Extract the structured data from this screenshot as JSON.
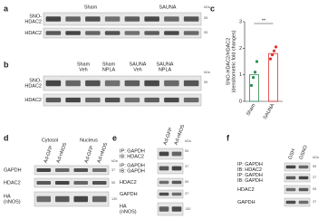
{
  "panels": {
    "a": {
      "label": "a",
      "groups": [
        "Sham",
        "SAUNA"
      ],
      "rows": [
        [
          "SNO-",
          "HDAC2"
        ],
        [
          "HDAC2"
        ]
      ],
      "mw": [
        "kDa",
        "55",
        "55"
      ]
    },
    "b": {
      "label": "b",
      "groups": [
        [
          "Sham",
          "Veh"
        ],
        [
          "Sham",
          "NPLA"
        ],
        [
          "SAUNA",
          "Veh"
        ],
        [
          "SAUNA",
          "NPLA"
        ]
      ],
      "rows": [
        [
          "SNO-",
          "HDAC2"
        ],
        [
          "HDAC2"
        ]
      ],
      "mw": [
        "kDa",
        "55"
      ]
    },
    "d": {
      "label": "d",
      "groups": [
        "Cytosol",
        "Nucleus"
      ],
      "lanes": [
        "Ad-GFP",
        "Ad-nNOS",
        "Ad-GFP",
        "Ad-nNOS"
      ],
      "rows": [
        [
          "GAPDH"
        ],
        [
          "HDAC2"
        ],
        [
          "HA",
          "(nNOS)"
        ]
      ],
      "mw": [
        "kDa",
        "37",
        "55",
        "130"
      ]
    },
    "e": {
      "label": "e",
      "lanes": [
        "Ad-GFP",
        "Ad-nNOS"
      ],
      "rows": [
        [
          "IP: GAPDH",
          "IB: HDAC2"
        ],
        [
          "IP: GAPDH",
          "IB: GAPDH"
        ],
        [
          "HDAC2"
        ],
        [
          "GAPDH"
        ],
        [
          "HA",
          "(nNOS)"
        ]
      ],
      "mw": [
        "kDa",
        "55",
        "37",
        "55",
        "37",
        "130"
      ]
    },
    "f": {
      "label": "f",
      "lanes": [
        "GSH",
        "GSNO"
      ],
      "rows": [
        [
          "IP: GAPDH",
          "IB: HDAC2"
        ],
        [
          "IP: GAPDH",
          "IB: GAPDH"
        ],
        [
          "HDAC2"
        ],
        [
          "GAPDH"
        ]
      ],
      "mw": [
        "kDa",
        "55",
        "37",
        "55",
        "37"
      ]
    }
  },
  "chart_data": {
    "type": "bar",
    "label": "c",
    "y_label": [
      "SNO-HDAC2/HDAC2",
      "(densitometric fold changes)"
    ],
    "categories": [
      "Sham",
      "SAUNA"
    ],
    "values": [
      1,
      1.8
    ],
    "colors": [
      "#2e8b57",
      "#e03030"
    ],
    "points": [
      [
        0.6,
        0.9,
        1.1,
        1.5
      ],
      [
        1.6,
        1.75,
        1.9,
        2.05
      ]
    ],
    "annotation": "**",
    "ylim": [
      0,
      3
    ],
    "yticks": [
      0,
      1,
      2,
      3
    ]
  }
}
